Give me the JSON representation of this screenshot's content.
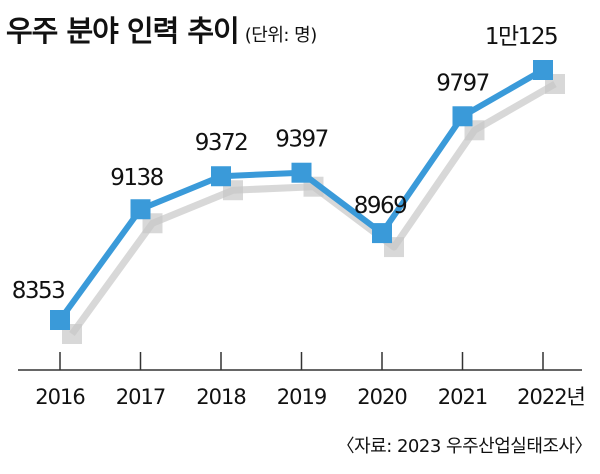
{
  "chart_data": {
    "type": "line",
    "title": "우주 분야 인력 추이",
    "unit_label": "(단위: 명)",
    "categories": [
      "2016",
      "2017",
      "2018",
      "2019",
      "2020",
      "2021",
      "2022년"
    ],
    "series": [
      {
        "values": [
          8353,
          9138,
          9372,
          9397,
          8969,
          9797,
          10125
        ]
      }
    ],
    "data_labels": [
      "8353",
      "9138",
      "9372",
      "9397",
      "8969",
      "9797",
      "1만125"
    ],
    "ylim": [
      7600,
      10500
    ],
    "grid": false,
    "line_color": "#3a9ad9",
    "shadow_color": "#c8c8c8"
  },
  "source": "〈자료: 2023 우주산업실태조사〉"
}
